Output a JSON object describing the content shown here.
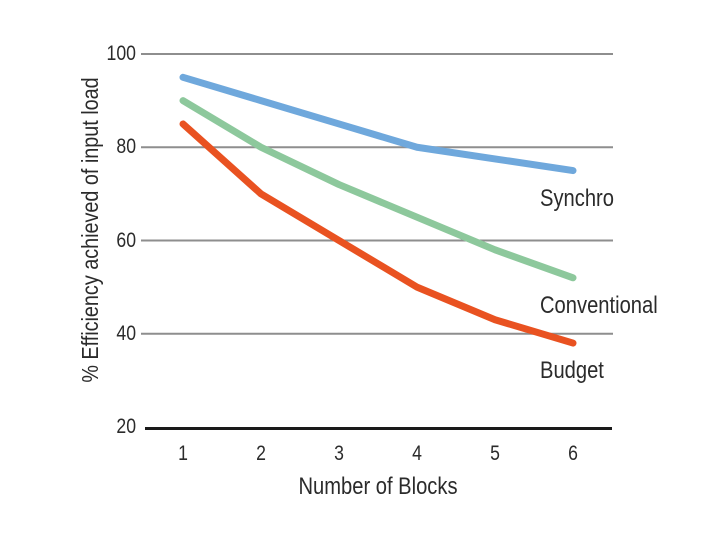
{
  "chart_data": {
    "type": "line",
    "title": "",
    "xlabel": "Number of Blocks",
    "ylabel": "% Efficiency achieved of input load",
    "x": [
      1,
      2,
      3,
      4,
      5,
      6
    ],
    "xticks": [
      "1",
      "2",
      "3",
      "4",
      "5",
      "6"
    ],
    "yticks": [
      20,
      40,
      60,
      80,
      100
    ],
    "ylim": [
      20,
      100
    ],
    "xlim": [
      1,
      6
    ],
    "grid": "horizontal-only",
    "legend_position": "inline-right-of-line-ends",
    "series": [
      {
        "name": "Synchro",
        "color": "#6FA8DC",
        "values": [
          95,
          90,
          85,
          80,
          77.5,
          75
        ]
      },
      {
        "name": "Conventional",
        "color": "#8DC89C",
        "values": [
          90,
          80,
          72,
          65,
          58,
          52
        ]
      },
      {
        "name": "Budget",
        "color": "#E95221",
        "values": [
          85,
          70,
          60,
          50,
          43,
          38
        ]
      }
    ],
    "colors": {
      "grid": "#8E8E8E",
      "axis": "#1A1A1A",
      "text": "#2B2B2B",
      "background": "#FFFFFF"
    }
  }
}
